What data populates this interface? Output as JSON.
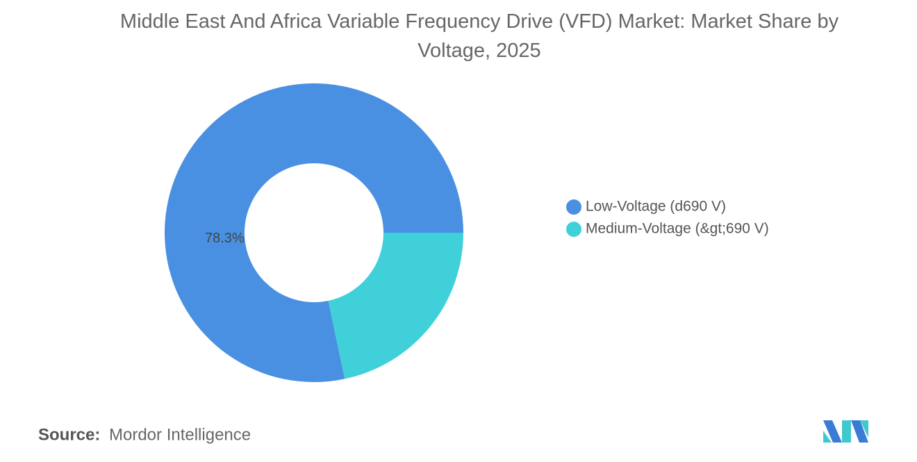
{
  "chart_data": {
    "type": "donut",
    "title": "Middle East And Africa Variable Frequency Drive (VFD) Market: Market Share by Voltage, 2025",
    "categories": [
      "Low-Voltage (d690 V)",
      "Medium-Voltage (&gt;690 V)"
    ],
    "values": [
      78.3,
      21.7
    ],
    "value_labels": [
      "78.3%",
      null
    ],
    "colors": [
      "#4a90e2",
      "#40d0da"
    ],
    "legend": "right",
    "source_label": "Source:",
    "source": "Mordor Intelligence"
  }
}
